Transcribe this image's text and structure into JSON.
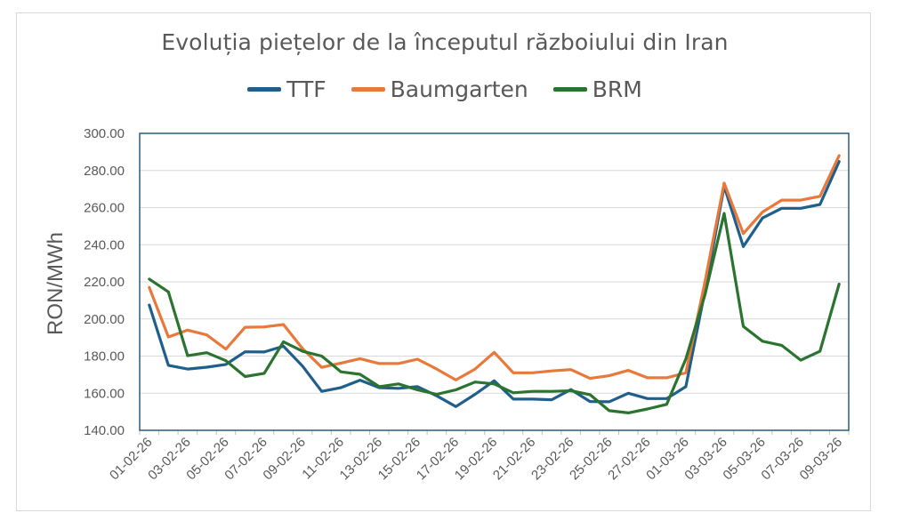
{
  "chart_data": {
    "type": "line",
    "title": "Evoluția piețelor de la începutul războiului din Iran",
    "xlabel": "",
    "ylabel": "RON/MWh",
    "ylim": [
      140,
      300
    ],
    "yticks": [
      "140.00",
      "160.00",
      "180.00",
      "200.00",
      "220.00",
      "240.00",
      "260.00",
      "280.00",
      "300.00"
    ],
    "grid": true,
    "legend_position": "top",
    "x": [
      "01-02-26",
      "02-02-26",
      "03-02-26",
      "04-02-26",
      "05-02-26",
      "06-02-26",
      "07-02-26",
      "08-02-26",
      "09-02-26",
      "10-02-26",
      "11-02-26",
      "12-02-26",
      "13-02-26",
      "14-02-26",
      "15-02-26",
      "16-02-26",
      "17-02-26",
      "18-02-26",
      "19-02-26",
      "20-02-26",
      "21-02-26",
      "22-02-26",
      "23-02-26",
      "24-02-26",
      "25-02-26",
      "26-02-26",
      "27-02-26",
      "28-02-26",
      "01-03-26",
      "02-03-26",
      "03-03-26",
      "04-03-26",
      "05-03-26",
      "06-03-26",
      "07-03-26",
      "08-03-26",
      "09-03-26"
    ],
    "x_tick_labels_shown": [
      "01-02-26",
      "03-02-26",
      "05-02-26",
      "07-02-26",
      "09-02-26",
      "11-02-26",
      "13-02-26",
      "15-02-26",
      "17-02-26",
      "19-02-26",
      "21-02-26",
      "23-02-26",
      "25-02-26",
      "27-02-26",
      "01-03-26",
      "03-03-26",
      "05-03-26",
      "07-03-26",
      "09-03-26"
    ],
    "series": [
      {
        "name": "TTF",
        "color": "#1f5f8b",
        "values": [
          207.5,
          175,
          173,
          174,
          175.5,
          182.3,
          182.2,
          185.3,
          174.6,
          161,
          163,
          167,
          163,
          162.6,
          163.5,
          158.6,
          152.8,
          159.4,
          166.7,
          156.8,
          156.8,
          156.5,
          162,
          155.5,
          155.4,
          160,
          157.1,
          157.1,
          163.5,
          215,
          271.5,
          239,
          254.4,
          259.6,
          259.6,
          261.7,
          284.8
        ]
      },
      {
        "name": "Baumgarten",
        "color": "#e8793a",
        "values": [
          217,
          190.3,
          194,
          191.4,
          183.8,
          195.5,
          195.7,
          197,
          184,
          173.9,
          176.2,
          178.6,
          176,
          176,
          178.3,
          173,
          167.1,
          173,
          182,
          171,
          171,
          172,
          172.7,
          168,
          169.4,
          172.3,
          168.3,
          168.3,
          171,
          220,
          273.2,
          246,
          257.6,
          264,
          264,
          266.1,
          288
        ]
      },
      {
        "name": "BRM",
        "color": "#2a7430",
        "values": [
          221.5,
          214.6,
          180.2,
          181.8,
          177.5,
          169,
          170.7,
          187.7,
          182.6,
          180,
          171.5,
          170.2,
          163.5,
          165,
          161.8,
          159.4,
          161.8,
          166,
          165,
          160.2,
          161,
          161,
          161.3,
          159.2,
          150.6,
          149.4,
          151.5,
          154,
          178.4,
          213,
          256.9,
          196,
          188,
          185.8,
          177.8,
          182.6,
          218.8
        ]
      }
    ]
  }
}
